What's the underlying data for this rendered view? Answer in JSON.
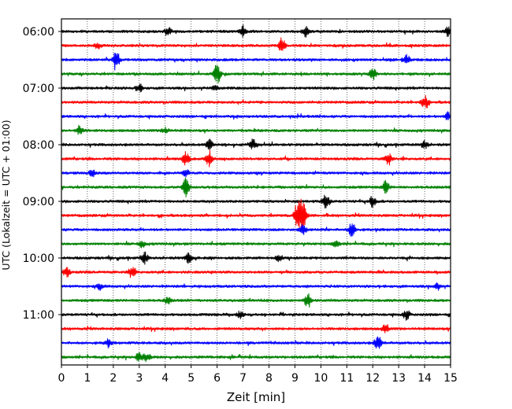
{
  "chart_data": {
    "type": "line",
    "subtype": "seismogram-helicorder",
    "xlabel": "Zeit  [min]",
    "ylabel": "UTC (Lokalzeit = UTC + 01:00)",
    "xlim": [
      0,
      15
    ],
    "x_ticks": [
      "0",
      "1",
      "2",
      "3",
      "4",
      "5",
      "6",
      "7",
      "8",
      "9",
      "10",
      "11",
      "12",
      "13",
      "14",
      "15"
    ],
    "y_ticks": [
      "06:00",
      "07:00",
      "08:00",
      "09:00",
      "10:00",
      "11:00"
    ],
    "grid": "vertical-dotted",
    "row_interval_min": 15,
    "trace_colors": [
      "#000000",
      "#ff0000",
      "#0000ff",
      "#008000"
    ],
    "rows": [
      {
        "start": "06:00",
        "color": "#000000",
        "events": [
          [
            4.1,
            6
          ],
          [
            7.0,
            7
          ],
          [
            9.4,
            6
          ],
          [
            14.9,
            6
          ]
        ]
      },
      {
        "start": "06:15",
        "color": "#ff0000",
        "events": [
          [
            8.5,
            10
          ],
          [
            1.4,
            4
          ]
        ]
      },
      {
        "start": "06:30",
        "color": "#0000ff",
        "events": [
          [
            2.1,
            14
          ],
          [
            13.3,
            6
          ]
        ]
      },
      {
        "start": "06:45",
        "color": "#008000",
        "events": [
          [
            6.0,
            13
          ],
          [
            12.0,
            8
          ]
        ]
      },
      {
        "start": "07:00",
        "color": "#000000",
        "events": [
          [
            3.0,
            5
          ],
          [
            5.9,
            4
          ]
        ]
      },
      {
        "start": "07:15",
        "color": "#ff0000",
        "events": [
          [
            14.0,
            9
          ]
        ]
      },
      {
        "start": "07:30",
        "color": "#0000ff",
        "events": [
          [
            14.9,
            5
          ]
        ]
      },
      {
        "start": "07:45",
        "color": "#008000",
        "events": [
          [
            0.7,
            6
          ],
          [
            4.0,
            4
          ]
        ]
      },
      {
        "start": "08:00",
        "color": "#000000",
        "events": [
          [
            5.7,
            6
          ],
          [
            7.4,
            7
          ],
          [
            14.0,
            5
          ]
        ]
      },
      {
        "start": "08:15",
        "color": "#ff0000",
        "events": [
          [
            4.8,
            9
          ],
          [
            5.7,
            10
          ],
          [
            12.6,
            8
          ]
        ]
      },
      {
        "start": "08:30",
        "color": "#0000ff",
        "events": [
          [
            1.2,
            4
          ],
          [
            4.8,
            4
          ]
        ]
      },
      {
        "start": "08:45",
        "color": "#008000",
        "events": [
          [
            4.8,
            12
          ],
          [
            12.5,
            8
          ]
        ]
      },
      {
        "start": "09:00",
        "color": "#000000",
        "events": [
          [
            10.2,
            10
          ],
          [
            12.0,
            7
          ]
        ]
      },
      {
        "start": "09:15",
        "color": "#ff0000",
        "events": [
          [
            9.1,
            18
          ],
          [
            9.3,
            20
          ]
        ]
      },
      {
        "start": "09:30",
        "color": "#0000ff",
        "events": [
          [
            11.2,
            10
          ],
          [
            9.3,
            6
          ]
        ]
      },
      {
        "start": "09:45",
        "color": "#008000",
        "events": [
          [
            3.1,
            4
          ],
          [
            10.6,
            4
          ]
        ]
      },
      {
        "start": "10:00",
        "color": "#000000",
        "events": [
          [
            3.2,
            7
          ],
          [
            4.9,
            6
          ],
          [
            8.4,
            4
          ]
        ]
      },
      {
        "start": "10:15",
        "color": "#ff0000",
        "events": [
          [
            0.2,
            6
          ],
          [
            2.7,
            7
          ]
        ]
      },
      {
        "start": "10:30",
        "color": "#0000ff",
        "events": [
          [
            1.5,
            4
          ],
          [
            14.5,
            4
          ]
        ]
      },
      {
        "start": "10:45",
        "color": "#008000",
        "events": [
          [
            9.5,
            9
          ],
          [
            4.1,
            4
          ]
        ]
      },
      {
        "start": "11:00",
        "color": "#000000",
        "events": [
          [
            13.3,
            6
          ],
          [
            6.9,
            4
          ]
        ]
      },
      {
        "start": "11:15",
        "color": "#ff0000",
        "events": [
          [
            12.5,
            6
          ]
        ]
      },
      {
        "start": "11:30",
        "color": "#0000ff",
        "events": [
          [
            12.2,
            10
          ],
          [
            1.8,
            4
          ]
        ]
      },
      {
        "start": "11:45",
        "color": "#008000",
        "events": [
          [
            3.0,
            6
          ],
          [
            3.3,
            5
          ]
        ]
      }
    ]
  }
}
